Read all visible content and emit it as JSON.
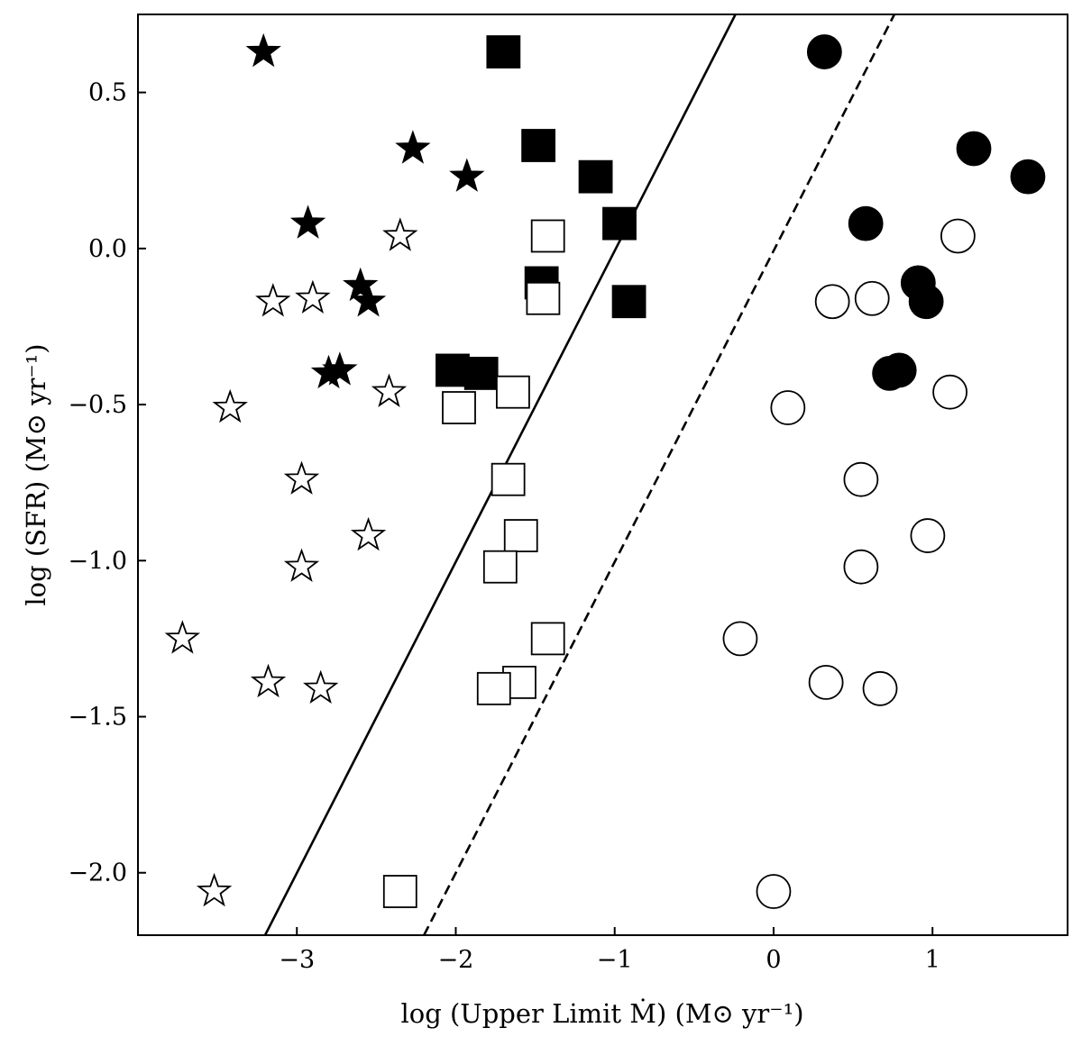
{
  "chart_data": {
    "type": "scatter",
    "title": "",
    "xlabel": "log (Upper Limit Ṁ) (M⊙ yr⁻¹)",
    "ylabel": "log (SFR) (M⊙ yr⁻¹)",
    "xlim": [
      -4.0,
      1.85
    ],
    "ylim": [
      -2.2,
      0.75
    ],
    "x_ticks": [
      -3,
      -2,
      -1,
      0,
      1
    ],
    "x_tick_labels": [
      "−3",
      "−2",
      "−1",
      "0",
      "1"
    ],
    "y_ticks": [
      -2.0,
      -1.5,
      -1.0,
      -0.5,
      0.0,
      0.5
    ],
    "y_tick_labels": [
      "−2.0",
      "−1.5",
      "−1.0",
      "−0.5",
      "0.0",
      "0.5"
    ],
    "grid": false,
    "legend": "none",
    "series": [
      {
        "marker": "star",
        "filled": true,
        "points": [
          [
            -3.21,
            0.63
          ],
          [
            -2.27,
            0.32
          ],
          [
            -1.93,
            0.23
          ],
          [
            -2.93,
            0.08
          ],
          [
            -2.6,
            -0.12
          ],
          [
            -2.55,
            -0.17
          ],
          [
            -2.8,
            -0.4
          ],
          [
            -2.73,
            -0.39
          ]
        ]
      },
      {
        "marker": "star",
        "filled": false,
        "points": [
          [
            -2.35,
            0.04
          ],
          [
            -3.15,
            -0.17
          ],
          [
            -2.9,
            -0.16
          ],
          [
            -2.42,
            -0.46
          ],
          [
            -3.42,
            -0.51
          ],
          [
            -2.97,
            -0.74
          ],
          [
            -2.55,
            -0.92
          ],
          [
            -2.97,
            -1.02
          ],
          [
            -3.72,
            -1.25
          ],
          [
            -3.18,
            -1.39
          ],
          [
            -2.85,
            -1.41
          ],
          [
            -3.52,
            -2.06
          ]
        ]
      },
      {
        "marker": "square",
        "filled": true,
        "points": [
          [
            -1.7,
            0.63
          ],
          [
            -1.48,
            0.33
          ],
          [
            -1.12,
            0.23
          ],
          [
            -0.97,
            0.08
          ],
          [
            -1.46,
            -0.11
          ],
          [
            -0.91,
            -0.17
          ],
          [
            -2.02,
            -0.39
          ],
          [
            -1.84,
            -0.4
          ]
        ]
      },
      {
        "marker": "square",
        "filled": false,
        "points": [
          [
            -1.42,
            0.04
          ],
          [
            -1.45,
            -0.16
          ],
          [
            -1.64,
            -0.46
          ],
          [
            -1.98,
            -0.51
          ],
          [
            -1.67,
            -0.74
          ],
          [
            -1.59,
            -0.92
          ],
          [
            -1.72,
            -1.02
          ],
          [
            -1.42,
            -1.25
          ],
          [
            -1.6,
            -1.39
          ],
          [
            -1.76,
            -1.41
          ],
          [
            -2.35,
            -2.06
          ]
        ]
      },
      {
        "marker": "circle",
        "filled": true,
        "points": [
          [
            0.32,
            0.63
          ],
          [
            1.26,
            0.32
          ],
          [
            1.6,
            0.23
          ],
          [
            0.58,
            0.08
          ],
          [
            0.91,
            -0.11
          ],
          [
            0.96,
            -0.17
          ],
          [
            0.73,
            -0.4
          ],
          [
            0.79,
            -0.39
          ]
        ]
      },
      {
        "marker": "circle",
        "filled": false,
        "points": [
          [
            1.16,
            0.04
          ],
          [
            0.37,
            -0.17
          ],
          [
            0.62,
            -0.16
          ],
          [
            1.11,
            -0.46
          ],
          [
            0.09,
            -0.51
          ],
          [
            0.55,
            -0.74
          ],
          [
            0.97,
            -0.92
          ],
          [
            0.55,
            -1.02
          ],
          [
            -0.21,
            -1.25
          ],
          [
            0.33,
            -1.39
          ],
          [
            0.67,
            -1.41
          ],
          [
            0.0,
            -2.06
          ]
        ]
      }
    ],
    "lines": [
      {
        "style": "solid",
        "points": [
          [
            -3.2,
            -2.2
          ],
          [
            -0.24,
            0.75
          ]
        ]
      },
      {
        "style": "dashed",
        "points": [
          [
            -2.2,
            -2.2
          ],
          [
            0.76,
            0.75
          ]
        ]
      }
    ]
  }
}
